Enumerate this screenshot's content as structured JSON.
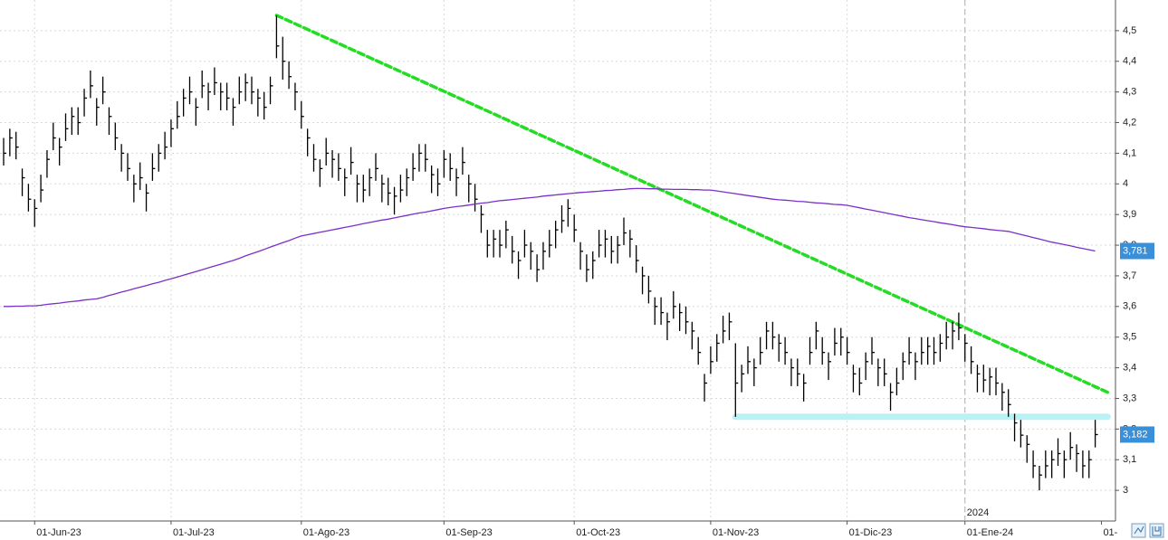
{
  "chart_data": {
    "type": "ohlc",
    "categories": [
      null,
      null,
      null,
      null,
      null,
      "01-Jun-23",
      null,
      null,
      null,
      null,
      null,
      null,
      null,
      null,
      null,
      null,
      null,
      null,
      null,
      null,
      null,
      null,
      null,
      null,
      null,
      null,
      null,
      "01-Jul-23",
      null,
      null,
      null,
      null,
      null,
      null,
      null,
      null,
      null,
      null,
      null,
      null,
      null,
      null,
      null,
      null,
      null,
      null,
      null,
      null,
      "01-Ago-23",
      null,
      null,
      null,
      null,
      null,
      null,
      null,
      null,
      null,
      null,
      null,
      null,
      null,
      null,
      null,
      null,
      null,
      null,
      null,
      null,
      null,
      null,
      "01-Sep-23",
      null,
      null,
      null,
      null,
      null,
      null,
      null,
      null,
      null,
      null,
      null,
      null,
      null,
      null,
      null,
      null,
      null,
      null,
      null,
      null,
      "01-Oct-23",
      null,
      null,
      null,
      null,
      null,
      null,
      null,
      null,
      null,
      null,
      null,
      null,
      null,
      null,
      null,
      null,
      null,
      null,
      null,
      null,
      null,
      "01-Nov-23",
      null,
      null,
      null,
      null,
      null,
      null,
      null,
      null,
      null,
      null,
      null,
      null,
      null,
      null,
      null,
      null,
      null,
      null,
      null,
      null,
      null,
      "01-Dic-23",
      null,
      null,
      null,
      null,
      null,
      null,
      null,
      null,
      null,
      null,
      null,
      null,
      null,
      null,
      null,
      null,
      null,
      null,
      "01-Ene-24",
      null,
      null,
      null,
      null,
      null,
      null,
      null,
      null,
      null,
      null,
      null,
      null,
      null,
      null,
      null,
      null,
      null,
      null,
      null,
      null,
      null
    ],
    "next_label": "01-",
    "year_marker": "2024",
    "series": [
      {
        "color": "#000000",
        "last_label": "3,182",
        "label_color": "#3a8fd9",
        "high": [
          4.15,
          4.18,
          4.17,
          4.05,
          4.0,
          3.95,
          4.03,
          4.11,
          4.2,
          4.15,
          4.23,
          4.25,
          4.25,
          4.31,
          4.37,
          4.28,
          4.35,
          4.25,
          4.2,
          4.13,
          4.1,
          4.03,
          4.07,
          4.0,
          4.1,
          4.13,
          4.17,
          4.21,
          4.27,
          4.31,
          4.35,
          4.28,
          4.37,
          4.33,
          4.38,
          4.33,
          4.33,
          4.28,
          4.35,
          4.36,
          4.35,
          4.31,
          4.3,
          4.35,
          4.55,
          4.48,
          4.4,
          4.33,
          4.27,
          4.18,
          4.13,
          4.08,
          4.15,
          4.11,
          4.1,
          4.05,
          4.12,
          4.03,
          4.03,
          4.05,
          4.1,
          4.03,
          4.02,
          3.99,
          4.03,
          4.05,
          4.1,
          4.13,
          4.13,
          4.06,
          4.05,
          4.11,
          4.1,
          4.05,
          4.12,
          4.03,
          4.0,
          3.93,
          3.85,
          3.85,
          3.85,
          3.88,
          3.83,
          3.78,
          3.85,
          3.81,
          3.77,
          3.81,
          3.85,
          3.88,
          3.93,
          3.95,
          3.9,
          3.81,
          3.77,
          3.78,
          3.85,
          3.85,
          3.83,
          3.83,
          3.89,
          3.85,
          3.8,
          3.73,
          3.7,
          3.63,
          3.63,
          3.58,
          3.65,
          3.61,
          3.6,
          3.55,
          3.5,
          3.38,
          3.47,
          3.51,
          3.57,
          3.58,
          3.48,
          3.41,
          3.47,
          3.43,
          3.5,
          3.55,
          3.55,
          3.51,
          3.5,
          3.43,
          3.43,
          3.38,
          3.5,
          3.55,
          3.5,
          3.45,
          3.53,
          3.53,
          3.5,
          3.41,
          3.4,
          3.45,
          3.5,
          3.43,
          3.43,
          3.35,
          3.4,
          3.45,
          3.5,
          3.45,
          3.5,
          3.5,
          3.5,
          3.51,
          3.55,
          3.55,
          3.58,
          3.51,
          3.47,
          3.41,
          3.41,
          3.4,
          3.4,
          3.35,
          3.33,
          3.25,
          3.23,
          3.18,
          3.13,
          3.08,
          3.13,
          3.13,
          3.17,
          3.13,
          3.19,
          3.15,
          3.13,
          3.13,
          3.23
        ],
        "low": [
          4.06,
          4.09,
          4.08,
          3.96,
          3.91,
          3.86,
          3.94,
          4.02,
          4.11,
          4.06,
          4.14,
          4.16,
          4.16,
          4.22,
          4.28,
          4.19,
          4.26,
          4.16,
          4.11,
          4.04,
          4.01,
          3.94,
          3.98,
          3.91,
          4.01,
          4.04,
          4.08,
          4.12,
          4.18,
          4.22,
          4.26,
          4.19,
          4.28,
          4.24,
          4.29,
          4.24,
          4.24,
          4.19,
          4.26,
          4.27,
          4.26,
          4.22,
          4.21,
          4.26,
          4.41,
          4.34,
          4.31,
          4.24,
          4.18,
          4.09,
          4.04,
          3.99,
          4.06,
          4.02,
          4.01,
          3.96,
          4.03,
          3.94,
          3.94,
          3.96,
          4.01,
          3.94,
          3.93,
          3.9,
          3.94,
          3.96,
          4.01,
          4.04,
          4.04,
          3.97,
          3.96,
          4.02,
          4.01,
          3.96,
          4.03,
          3.94,
          3.91,
          3.84,
          3.76,
          3.76,
          3.76,
          3.79,
          3.74,
          3.69,
          3.76,
          3.72,
          3.68,
          3.72,
          3.76,
          3.79,
          3.84,
          3.86,
          3.81,
          3.72,
          3.68,
          3.69,
          3.76,
          3.76,
          3.74,
          3.74,
          3.8,
          3.76,
          3.71,
          3.64,
          3.61,
          3.54,
          3.54,
          3.49,
          3.56,
          3.52,
          3.51,
          3.46,
          3.41,
          3.29,
          3.38,
          3.42,
          3.48,
          3.49,
          3.24,
          3.32,
          3.38,
          3.34,
          3.41,
          3.46,
          3.46,
          3.42,
          3.41,
          3.34,
          3.34,
          3.29,
          3.41,
          3.46,
          3.41,
          3.36,
          3.44,
          3.44,
          3.41,
          3.32,
          3.31,
          3.36,
          3.41,
          3.34,
          3.34,
          3.26,
          3.31,
          3.36,
          3.41,
          3.36,
          3.41,
          3.41,
          3.41,
          3.42,
          3.46,
          3.46,
          3.49,
          3.42,
          3.38,
          3.32,
          3.32,
          3.31,
          3.31,
          3.26,
          3.24,
          3.16,
          3.14,
          3.09,
          3.04,
          3.0,
          3.04,
          3.04,
          3.08,
          3.04,
          3.1,
          3.06,
          3.04,
          3.04,
          3.14
        ],
        "close": [
          4.1,
          4.15,
          4.12,
          4.02,
          3.95,
          3.92,
          3.98,
          4.08,
          4.15,
          4.12,
          4.18,
          4.22,
          4.2,
          4.28,
          4.32,
          4.25,
          4.3,
          4.22,
          4.15,
          4.1,
          4.05,
          4.0,
          4.02,
          3.97,
          4.05,
          4.1,
          4.12,
          4.18,
          4.22,
          4.28,
          4.3,
          4.25,
          4.32,
          4.3,
          4.33,
          4.3,
          4.28,
          4.25,
          4.3,
          4.33,
          4.3,
          4.28,
          4.25,
          4.32,
          4.45,
          4.4,
          4.35,
          4.3,
          4.22,
          4.15,
          4.08,
          4.05,
          4.1,
          4.08,
          4.05,
          4.02,
          4.07,
          4.0,
          3.98,
          4.02,
          4.05,
          4.0,
          3.97,
          3.96,
          3.98,
          4.02,
          4.05,
          4.1,
          4.08,
          4.03,
          4.0,
          4.08,
          4.05,
          4.02,
          4.07,
          4.0,
          3.95,
          3.9,
          3.8,
          3.82,
          3.8,
          3.85,
          3.78,
          3.75,
          3.8,
          3.78,
          3.72,
          3.78,
          3.8,
          3.85,
          3.88,
          3.92,
          3.85,
          3.78,
          3.72,
          3.75,
          3.8,
          3.82,
          3.78,
          3.8,
          3.84,
          3.82,
          3.75,
          3.7,
          3.65,
          3.6,
          3.58,
          3.55,
          3.6,
          3.58,
          3.55,
          3.52,
          3.45,
          3.35,
          3.42,
          3.48,
          3.52,
          3.55,
          3.35,
          3.38,
          3.42,
          3.4,
          3.45,
          3.52,
          3.5,
          3.48,
          3.45,
          3.4,
          3.38,
          3.35,
          3.45,
          3.52,
          3.45,
          3.42,
          3.48,
          3.5,
          3.45,
          3.38,
          3.35,
          3.42,
          3.45,
          3.4,
          3.38,
          3.32,
          3.35,
          3.42,
          3.45,
          3.42,
          3.45,
          3.47,
          3.45,
          3.48,
          3.5,
          3.52,
          3.53,
          3.48,
          3.42,
          3.38,
          3.36,
          3.37,
          3.35,
          3.32,
          3.28,
          3.22,
          3.18,
          3.15,
          3.08,
          3.05,
          3.08,
          3.1,
          3.12,
          3.1,
          3.14,
          3.12,
          3.08,
          3.1,
          3.182
        ]
      },
      {
        "type": "line",
        "color": "#7b2fc9",
        "last_label": "3,781",
        "label_color": "#3a8fd9",
        "values": [
          3.6,
          3.6,
          3.601,
          3.601,
          3.602,
          3.602,
          3.604,
          3.607,
          3.609,
          3.611,
          3.614,
          3.616,
          3.618,
          3.621,
          3.623,
          3.625,
          3.63,
          3.636,
          3.641,
          3.647,
          3.652,
          3.658,
          3.663,
          3.668,
          3.674,
          3.679,
          3.685,
          3.69,
          3.696,
          3.702,
          3.708,
          3.714,
          3.72,
          3.726,
          3.732,
          3.738,
          3.744,
          3.75,
          3.757,
          3.765,
          3.772,
          3.779,
          3.786,
          3.794,
          3.801,
          3.808,
          3.815,
          3.823,
          3.83,
          3.834,
          3.838,
          3.842,
          3.846,
          3.85,
          3.854,
          3.858,
          3.862,
          3.866,
          3.87,
          3.874,
          3.878,
          3.882,
          3.885,
          3.889,
          3.893,
          3.897,
          3.901,
          3.905,
          3.908,
          3.912,
          3.916,
          3.92,
          3.923,
          3.926,
          3.928,
          3.931,
          3.934,
          3.937,
          3.939,
          3.942,
          3.945,
          3.947,
          3.949,
          3.951,
          3.953,
          3.955,
          3.957,
          3.96,
          3.962,
          3.964,
          3.966,
          3.968,
          3.97,
          3.972,
          3.973,
          3.975,
          3.976,
          3.978,
          3.979,
          3.981,
          3.982,
          3.984,
          3.985,
          3.985,
          3.984,
          3.984,
          3.983,
          3.983,
          3.982,
          3.982,
          3.982,
          3.981,
          3.981,
          3.98,
          3.98,
          3.977,
          3.974,
          3.971,
          3.968,
          3.965,
          3.962,
          3.959,
          3.956,
          3.953,
          3.95,
          3.948,
          3.947,
          3.945,
          3.943,
          3.942,
          3.94,
          3.938,
          3.937,
          3.935,
          3.933,
          3.932,
          3.93,
          3.926,
          3.922,
          3.918,
          3.914,
          3.91,
          3.906,
          3.902,
          3.898,
          3.894,
          3.89,
          3.887,
          3.883,
          3.88,
          3.877,
          3.873,
          3.87,
          3.867,
          3.863,
          3.86,
          3.858,
          3.856,
          3.854,
          3.851,
          3.849,
          3.847,
          3.845,
          3.84,
          3.835,
          3.83,
          3.825,
          3.82,
          3.815,
          3.81,
          3.806,
          3.802,
          3.798,
          3.793,
          3.789,
          3.785,
          3.781
        ]
      }
    ],
    "trendline": {
      "color": "#22dd22",
      "points": [
        [
          44,
          4.55
        ],
        [
          178,
          3.32
        ]
      ]
    },
    "support": {
      "color": "#b8f2f4",
      "points": [
        [
          118,
          3.24
        ],
        [
          178,
          3.24
        ]
      ]
    },
    "ylim": [
      2.9,
      4.6
    ],
    "yticks": [
      {
        "value": 3,
        "label": "3"
      },
      {
        "value": 3.1,
        "label": "3,1"
      },
      {
        "value": 3.2,
        "label": "3,2"
      },
      {
        "value": 3.3,
        "label": "3,3"
      },
      {
        "value": 3.4,
        "label": "3,4"
      },
      {
        "value": 3.5,
        "label": "3,5"
      },
      {
        "value": 3.6,
        "label": "3,6"
      },
      {
        "value": 3.7,
        "label": "3,7"
      },
      {
        "value": 3.8,
        "label": "3,8"
      },
      {
        "value": 3.9,
        "label": "3,9"
      },
      {
        "value": 4,
        "label": "4"
      },
      {
        "value": 4.1,
        "label": "4,1"
      },
      {
        "value": 4.2,
        "label": "4,2"
      },
      {
        "value": 4.3,
        "label": "4,3"
      },
      {
        "value": 4.4,
        "label": "4,4"
      },
      {
        "value": 4.5,
        "label": "4,5"
      }
    ],
    "grid": true
  }
}
